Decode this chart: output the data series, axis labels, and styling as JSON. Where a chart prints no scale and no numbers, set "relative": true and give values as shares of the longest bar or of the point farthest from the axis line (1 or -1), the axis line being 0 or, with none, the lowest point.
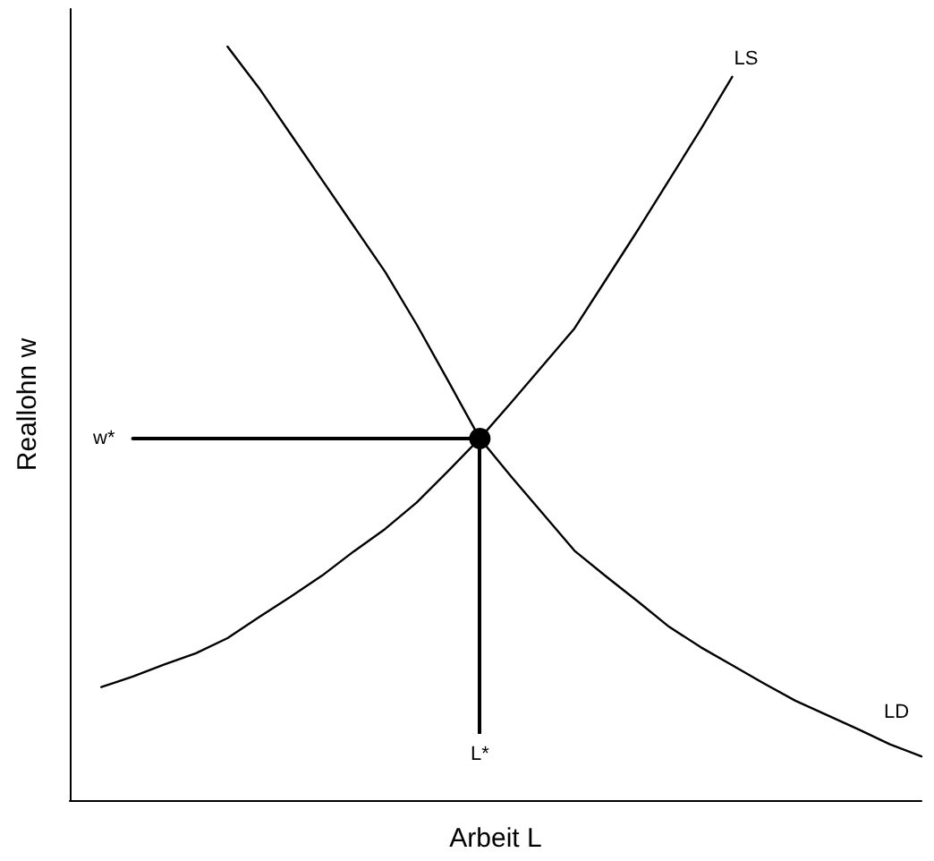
{
  "chart_data": {
    "type": "line",
    "relative": true,
    "xlabel": "Arbeit L",
    "ylabel": "Reallohn w",
    "marker": "none",
    "grid": false,
    "legend": false,
    "categories": [
      null,
      null,
      null,
      null,
      null,
      null,
      null,
      null,
      null,
      null,
      null,
      null,
      null,
      null,
      null,
      null,
      null,
      null,
      null,
      null,
      null,
      null,
      null,
      null,
      null,
      null,
      null,
      null
    ],
    "series": [
      {
        "name": "LD",
        "color": "#000000",
        "values": [
          null,
          null,
          null,
          null,
          null,
          1.0,
          0.945,
          0.884,
          0.823,
          0.762,
          0.701,
          0.631,
          0.556,
          0.48,
          0.429,
          0.38,
          0.331,
          0.297,
          0.264,
          0.23,
          0.203,
          0.179,
          0.155,
          0.132,
          0.113,
          0.094,
          0.074,
          0.058
        ]
      },
      {
        "name": "LS",
        "color": "#000000",
        "values": [
          null,
          0.15,
          0.164,
          0.18,
          0.195,
          0.215,
          0.243,
          0.27,
          0.298,
          0.33,
          0.36,
          0.395,
          0.437,
          0.48,
          0.528,
          0.577,
          0.626,
          0.691,
          0.756,
          0.823,
          0.89,
          0.96,
          null,
          null,
          null,
          null,
          null,
          null
        ]
      },
      {
        "name": "w*",
        "color": "#000000",
        "values": [
          null,
          null,
          0.48,
          0.48,
          0.48,
          0.48,
          0.48,
          0.48,
          0.48,
          0.48,
          0.48,
          0.48,
          0.48,
          0.48,
          null,
          null,
          null,
          null,
          null,
          null,
          null,
          null,
          null,
          null,
          null,
          null,
          null,
          null
        ]
      },
      {
        "color": "#000000",
        "marker": "circle",
        "values": [
          null,
          null,
          null,
          null,
          null,
          null,
          null,
          null,
          null,
          null,
          null,
          null,
          null,
          0.48,
          null,
          null,
          null,
          null,
          null,
          null,
          null,
          null,
          null,
          null,
          null,
          null,
          null,
          null
        ]
      }
    ],
    "annotations": [
      "L*"
    ]
  }
}
